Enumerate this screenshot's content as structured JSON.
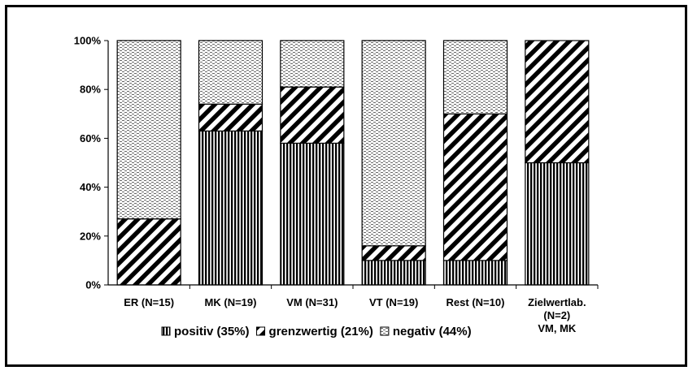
{
  "chart_data": {
    "type": "bar",
    "stacked": true,
    "percent": true,
    "categories": [
      [
        "ER (N=15)"
      ],
      [
        "MK (N=19)"
      ],
      [
        "VM (N=31)"
      ],
      [
        "VT (N=19)"
      ],
      [
        "Rest (N=10)"
      ],
      [
        "Zielwertlab.",
        "(N=2)",
        "VM, MK"
      ]
    ],
    "series": [
      {
        "name": "positiv (35%)",
        "pattern": "vertical",
        "values": [
          0,
          63,
          58,
          10,
          10,
          50
        ]
      },
      {
        "name": "grenzwertig (21%)",
        "pattern": "diagonal",
        "values": [
          27,
          11,
          23,
          6,
          60,
          50
        ]
      },
      {
        "name": "negativ (44%)",
        "pattern": "dotted",
        "values": [
          73,
          26,
          19,
          84,
          30,
          0
        ]
      }
    ],
    "yticks": [
      "0%",
      "20%",
      "40%",
      "60%",
      "80%",
      "100%"
    ],
    "ylim": [
      0,
      100
    ],
    "legend_position": "bottom",
    "grid": false,
    "colors": {
      "ink": "#000000",
      "background": "#ffffff"
    }
  }
}
